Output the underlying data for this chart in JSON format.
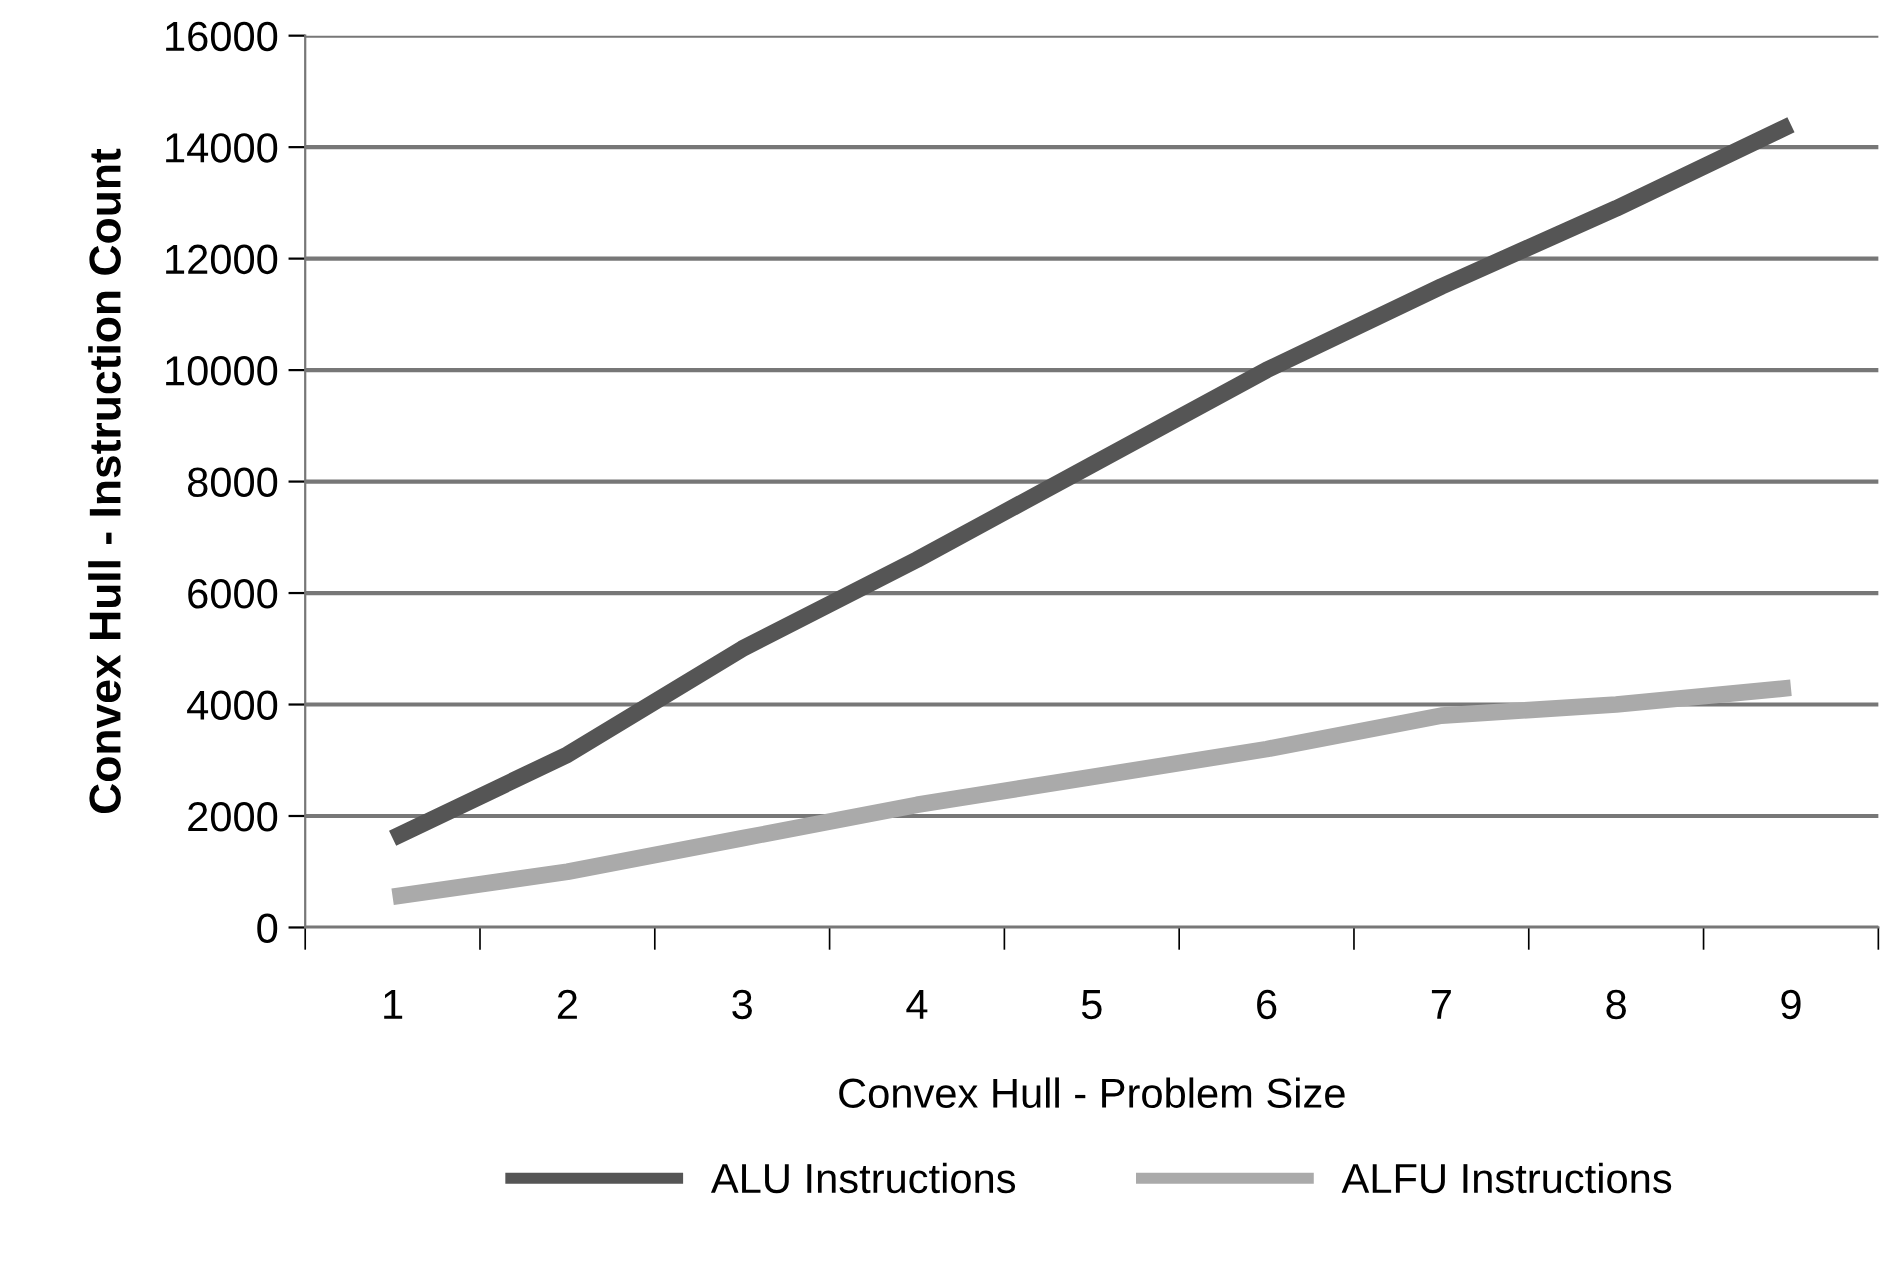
{
  "chart_data": {
    "type": "line",
    "xlabel": "Convex Hull - Problem Size",
    "ylabel": "Convex Hull - Instruction Count",
    "categories": [
      "1",
      "2",
      "3",
      "4",
      "5",
      "6",
      "7",
      "8",
      "9"
    ],
    "series": [
      {
        "name": "ALU Instructions",
        "color": "#555555",
        "values": [
          1600,
          3100,
          5000,
          6600,
          8300,
          10000,
          11500,
          12900,
          14400
        ]
      },
      {
        "name": "ALFU Instructions",
        "color": "#aaaaaa",
        "values": [
          550,
          1000,
          1600,
          2200,
          2700,
          3200,
          3800,
          4000,
          4300
        ]
      }
    ],
    "ylim": [
      0,
      16000
    ],
    "yticks": [
      0,
      2000,
      4000,
      6000,
      8000,
      10000,
      12000,
      14000,
      16000
    ],
    "grid": "y",
    "legend": "bottom",
    "marker": "none",
    "line_style": "solid"
  }
}
